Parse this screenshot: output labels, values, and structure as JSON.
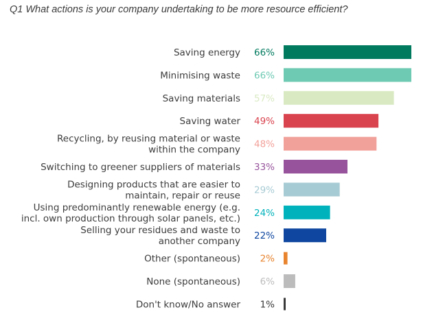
{
  "chart_data": {
    "type": "bar",
    "orientation": "horizontal",
    "title": "Q1 What actions is your company undertaking to be more resource efficient?",
    "xlim": [
      0,
      66
    ],
    "grid": false,
    "categories": [
      {
        "lines": [
          "Saving energy"
        ]
      },
      {
        "lines": [
          "Minimising waste"
        ]
      },
      {
        "lines": [
          "Saving materials"
        ]
      },
      {
        "lines": [
          "Saving water"
        ]
      },
      {
        "lines": [
          "Recycling, by reusing material or waste",
          "within the company"
        ]
      },
      {
        "lines": [
          "Switching to greener suppliers of materials"
        ]
      },
      {
        "lines": [
          "Designing products that are easier to",
          "maintain, repair or reuse"
        ]
      },
      {
        "lines": [
          "Using predominantly renewable energy (e.g.",
          "incl. own production through solar panels, etc.)"
        ]
      },
      {
        "lines": [
          "Selling your residues and waste to",
          "another company"
        ]
      },
      {
        "lines": [
          "Other (spontaneous)"
        ]
      },
      {
        "lines": [
          "None (spontaneous)"
        ]
      },
      {
        "lines": [
          "Don't know/No answer"
        ]
      }
    ],
    "values": [
      66,
      66,
      57,
      49,
      48,
      33,
      29,
      24,
      22,
      2,
      6,
      1
    ],
    "value_labels": [
      "66%",
      "66%",
      "57%",
      "49%",
      "48%",
      "33%",
      "29%",
      "24%",
      "22%",
      "2%",
      "6%",
      "1%"
    ],
    "colors": [
      "#007a5e",
      "#6fcab3",
      "#d9eac3",
      "#d9434e",
      "#f2a19a",
      "#97549d",
      "#a7cbd4",
      "#00b2bb",
      "#0f47a0",
      "#e8842f",
      "#bcbcbc",
      "#3a3a3a"
    ]
  }
}
